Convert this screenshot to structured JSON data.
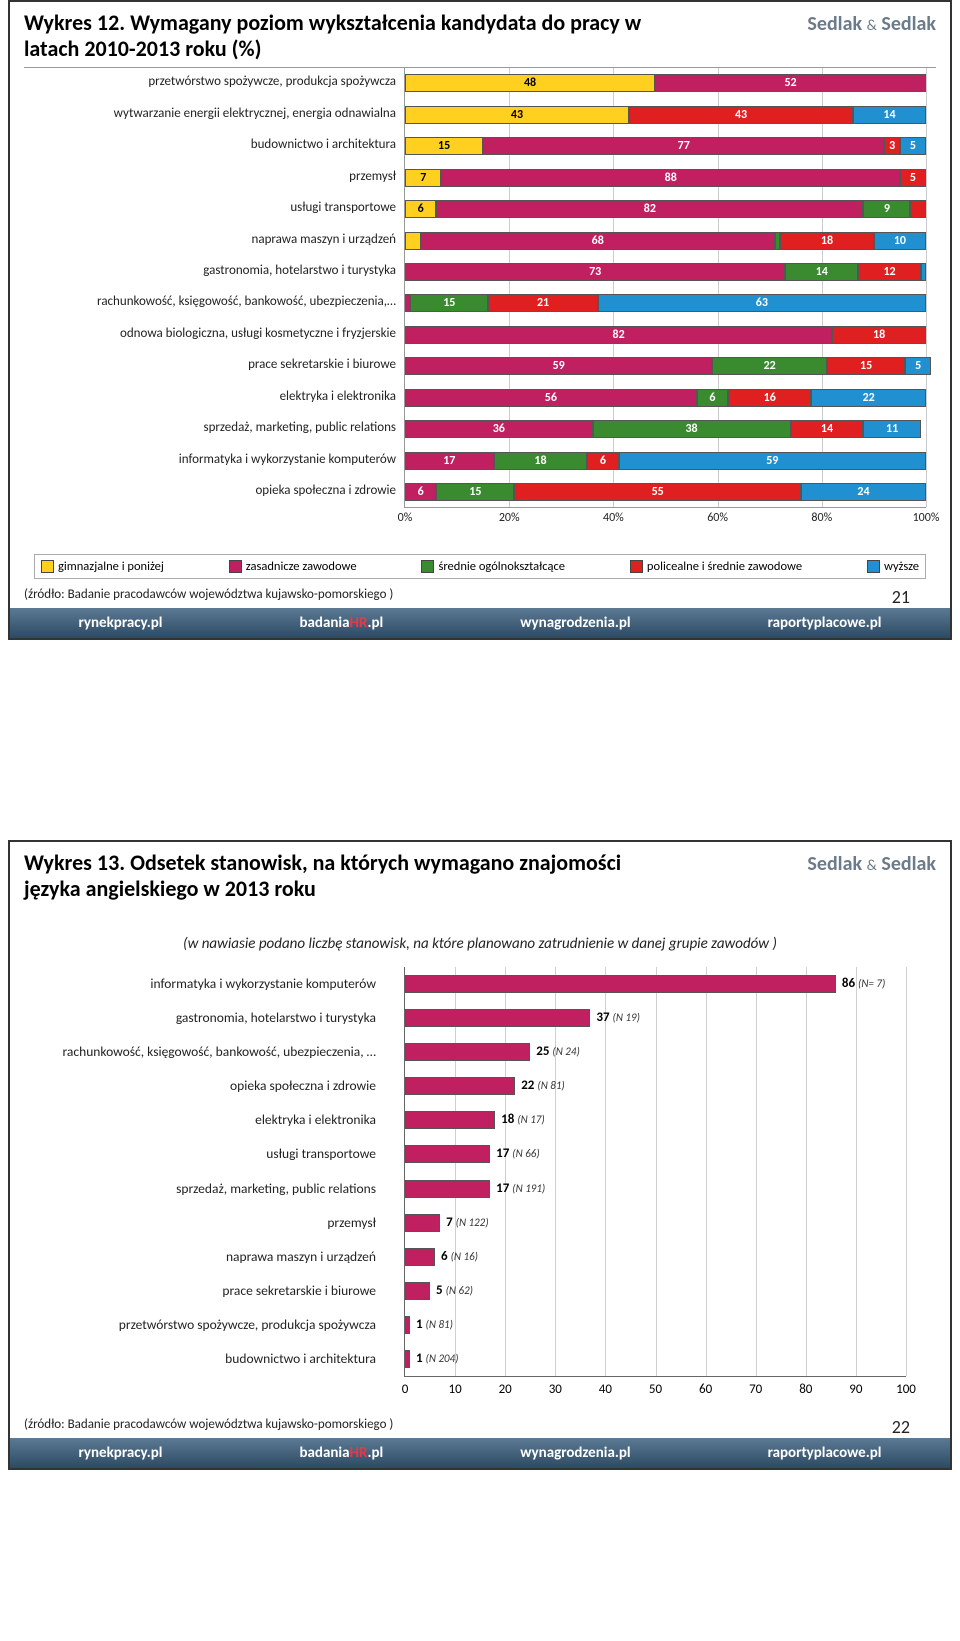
{
  "colors": {
    "yellow": "#ffd020",
    "magenta": "#c02060",
    "green": "#3a8a30",
    "red": "#e02020",
    "blue": "#2090d0",
    "grid": "#cccccc",
    "axis": "#999999",
    "bar_border": "#555555",
    "logo": "#6c7b8a"
  },
  "logo": {
    "left": "Sedlak",
    "amp": "&",
    "right": "Sedlak"
  },
  "footer": {
    "site1": "rynekpracy.pl",
    "site2a": "badania",
    "site2b": "HR",
    "site2c": ".pl",
    "site3": "wynagrodzenia.pl",
    "site4": "raportyplacowe.pl"
  },
  "chart12": {
    "title": "Wykres 12. Wymagany poziom wykształcenia kandydata do pracy w latach 2010-2013 roku (%)",
    "source": "(źródło: Badanie pracodawców województwa kujawsko-pomorskiego )",
    "page": "21",
    "xticks": [
      "0%",
      "20%",
      "40%",
      "60%",
      "80%",
      "100%"
    ],
    "legend": [
      {
        "label": "gimnazjalne i poniżej",
        "color": "#ffd020"
      },
      {
        "label": "zasadnicze zawodowe",
        "color": "#c02060"
      },
      {
        "label": "średnie ogólnokształcące",
        "color": "#3a8a30"
      },
      {
        "label": "policealne i średnie zawodowe",
        "color": "#e02020"
      },
      {
        "label": "wyższe",
        "color": "#2090d0"
      }
    ],
    "rows": [
      {
        "label": "przetwórstwo spożywcze, produkcja spożywcza",
        "segs": [
          {
            "v": 48,
            "t": "48"
          },
          {
            "v": 52,
            "t": "52"
          },
          {
            "v": 0,
            "t": ""
          },
          {
            "v": 0,
            "t": ""
          },
          {
            "v": 0,
            "t": ""
          }
        ]
      },
      {
        "label": "wytwarzanie energii elektrycznej, energia odnawialna",
        "segs": [
          {
            "v": 43,
            "t": "43"
          },
          {
            "v": 0,
            "t": ""
          },
          {
            "v": 0,
            "t": ""
          },
          {
            "v": 43,
            "t": "43"
          },
          {
            "v": 14,
            "t": "14"
          }
        ]
      },
      {
        "label": "budownictwo i architektura",
        "segs": [
          {
            "v": 15,
            "t": "15"
          },
          {
            "v": 77,
            "t": "77"
          },
          {
            "v": 0,
            "t": ""
          },
          {
            "v": 3,
            "t": "3"
          },
          {
            "v": 5,
            "t": "5"
          }
        ]
      },
      {
        "label": "przemysł",
        "segs": [
          {
            "v": 7,
            "t": "7"
          },
          {
            "v": 88,
            "t": "88"
          },
          {
            "v": 0,
            "t": ""
          },
          {
            "v": 5,
            "t": "5"
          },
          {
            "v": 0,
            "t": ""
          }
        ]
      },
      {
        "label": "usługi transportowe",
        "segs": [
          {
            "v": 6,
            "t": "6"
          },
          {
            "v": 82,
            "t": "82"
          },
          {
            "v": 9,
            "t": "9"
          },
          {
            "v": 3,
            "t": ""
          },
          {
            "v": 0,
            "t": ""
          }
        ]
      },
      {
        "label": "naprawa maszyn i urządzeń",
        "segs": [
          {
            "v": 3,
            "t": ""
          },
          {
            "v": 68,
            "t": "68"
          },
          {
            "v": 1,
            "t": ""
          },
          {
            "v": 18,
            "t": "18"
          },
          {
            "v": 10,
            "t": "10"
          }
        ]
      },
      {
        "label": "gastronomia, hotelarstwo i turystyka",
        "segs": [
          {
            "v": 0,
            "t": ""
          },
          {
            "v": 73,
            "t": "73"
          },
          {
            "v": 14,
            "t": "14"
          },
          {
            "v": 12,
            "t": "12"
          },
          {
            "v": 1,
            "t": ""
          }
        ]
      },
      {
        "label": "rachunkowość, księgowość, bankowość, ubezpieczenia,…",
        "segs": [
          {
            "v": 0,
            "t": ""
          },
          {
            "v": 1,
            "t": ""
          },
          {
            "v": 15,
            "t": "15"
          },
          {
            "v": 21,
            "t": "21"
          },
          {
            "v": 63,
            "t": "63"
          }
        ]
      },
      {
        "label": "odnowa biologiczna, usługi kosmetyczne i fryzjerskie",
        "segs": [
          {
            "v": 0,
            "t": ""
          },
          {
            "v": 82,
            "t": "82"
          },
          {
            "v": 0,
            "t": ""
          },
          {
            "v": 18,
            "t": "18"
          },
          {
            "v": 0,
            "t": ""
          }
        ]
      },
      {
        "label": "prace sekretarskie i biurowe",
        "segs": [
          {
            "v": 0,
            "t": ""
          },
          {
            "v": 59,
            "t": "59"
          },
          {
            "v": 22,
            "t": "22"
          },
          {
            "v": 15,
            "t": "15"
          },
          {
            "v": 5,
            "t": "5"
          }
        ]
      },
      {
        "label": "elektryka i elektronika",
        "segs": [
          {
            "v": 0,
            "t": ""
          },
          {
            "v": 56,
            "t": "56"
          },
          {
            "v": 6,
            "t": "6"
          },
          {
            "v": 16,
            "t": "16"
          },
          {
            "v": 22,
            "t": "22"
          }
        ]
      },
      {
        "label": "sprzedaż, marketing, public relations",
        "segs": [
          {
            "v": 0,
            "t": ""
          },
          {
            "v": 36,
            "t": "36"
          },
          {
            "v": 38,
            "t": "38"
          },
          {
            "v": 14,
            "t": "14"
          },
          {
            "v": 11,
            "t": "11"
          }
        ]
      },
      {
        "label": "informatyka i wykorzystanie komputerów",
        "segs": [
          {
            "v": 0,
            "t": ""
          },
          {
            "v": 17,
            "t": "17"
          },
          {
            "v": 18,
            "t": "18"
          },
          {
            "v": 6,
            "t": "6"
          },
          {
            "v": 59,
            "t": "59"
          }
        ]
      },
      {
        "label": "opieka społeczna i zdrowie",
        "segs": [
          {
            "v": 0,
            "t": ""
          },
          {
            "v": 6,
            "t": "6"
          },
          {
            "v": 15,
            "t": "15"
          },
          {
            "v": 55,
            "t": "55"
          },
          {
            "v": 24,
            "t": "24"
          }
        ]
      }
    ]
  },
  "chart13": {
    "title": "Wykres 13. Odsetek stanowisk, na których wymagano znajomości języka angielskiego w 2013 roku",
    "subtitle": "(w nawiasie podano liczbę stanowisk, na które planowano zatrudnienie w danej grupie zawodów )",
    "source": "(źródło: Badanie pracodawców województwa kujawsko-pomorskiego )",
    "page": "22",
    "xmax": 100,
    "xticks": [
      "0",
      "10",
      "20",
      "30",
      "40",
      "50",
      "60",
      "70",
      "80",
      "90",
      "100"
    ],
    "bar_color": "#c02060",
    "rows": [
      {
        "label": "informatyka i wykorzystanie komputerów",
        "v": 86,
        "n": "(N= 7)"
      },
      {
        "label": "gastronomia, hotelarstwo i turystyka",
        "v": 37,
        "n": "(N   19)"
      },
      {
        "label": "rachunkowość, księgowość, bankowość, ubezpieczenia, …",
        "v": 25,
        "n": "(N   24)"
      },
      {
        "label": "opieka społeczna i zdrowie",
        "v": 22,
        "n": "(N   81)"
      },
      {
        "label": "elektryka i elektronika",
        "v": 18,
        "n": "(N   17)"
      },
      {
        "label": "usługi transportowe",
        "v": 17,
        "n": "(N   66)"
      },
      {
        "label": "sprzedaż, marketing, public relations",
        "v": 17,
        "n": "(N   191)"
      },
      {
        "label": "przemysł",
        "v": 7,
        "n": "(N   122)"
      },
      {
        "label": "naprawa maszyn i urządzeń",
        "v": 6,
        "n": "(N   16)"
      },
      {
        "label": "prace sekretarskie i biurowe",
        "v": 5,
        "n": "(N   62)"
      },
      {
        "label": "przetwórstwo spożywcze, produkcja spożywcza",
        "v": 1,
        "n": "(N   81)"
      },
      {
        "label": "budownictwo i architektura",
        "v": 1,
        "n": "(N   204)"
      }
    ]
  }
}
